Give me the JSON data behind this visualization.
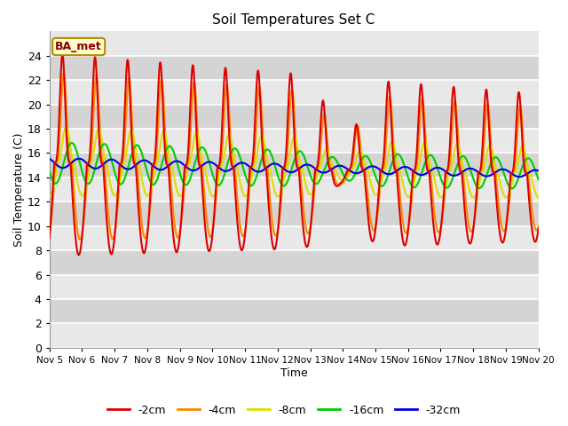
{
  "title": "Soil Temperatures Set C",
  "xlabel": "Time",
  "ylabel": "Soil Temperature (C)",
  "ylim": [
    0,
    26
  ],
  "annotation": "BA_met",
  "legend_labels": [
    "-2cm",
    "-4cm",
    "-8cm",
    "-16cm",
    "-32cm"
  ],
  "line_colors": [
    "#dd0000",
    "#ff8800",
    "#dddd00",
    "#00cc00",
    "#0000dd"
  ],
  "xtick_labels": [
    "Nov 5",
    "Nov 6",
    "Nov 7",
    "Nov 8",
    "Nov 9",
    "Nov 10",
    "Nov 11",
    "Nov 12",
    "Nov 13",
    "Nov 14",
    "Nov 15",
    "Nov 16",
    "Nov 17",
    "Nov 18",
    "Nov 19",
    "Nov 20"
  ],
  "background_color": "#ffffff",
  "plot_bg_bands": [
    "#e8e8e8",
    "#d8d8d8"
  ],
  "grid_color": "#ffffff",
  "n_points": 1440,
  "days": 15,
  "base_temp": 15.2,
  "trend": -0.06
}
